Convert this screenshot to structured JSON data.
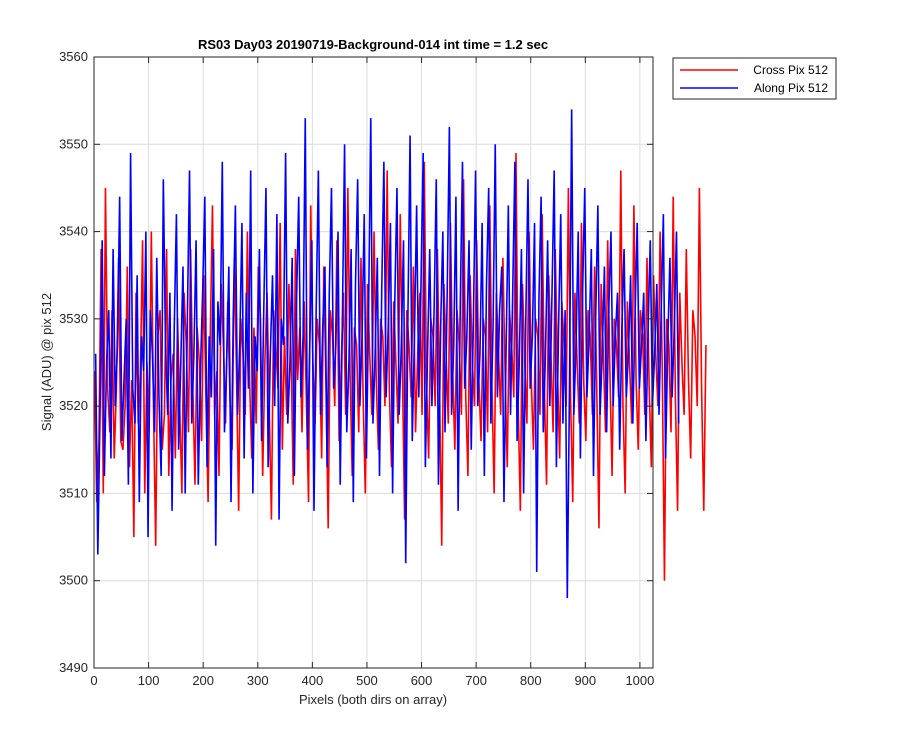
{
  "chart_data": {
    "type": "line",
    "title": "RS03 Day03 20190719-Background-014 int time = 1.2 sec",
    "xlabel": "Pixels (both dirs on array)",
    "ylabel": "Signal (ADU) @ pix 512",
    "xlim": [
      0,
      1024
    ],
    "ylim": [
      3490,
      3560
    ],
    "xticks": [
      0,
      100,
      200,
      300,
      400,
      500,
      600,
      700,
      800,
      900,
      1000
    ],
    "yticks": [
      3490,
      3500,
      3510,
      3520,
      3530,
      3540,
      3550,
      3560
    ],
    "grid": true,
    "legend_position": "outside top-right",
    "series": [
      {
        "name": "Cross Pix 512",
        "color": "#ff0000",
        "x_start": 1,
        "x_step": 4,
        "values": [
          3524,
          3509,
          3516,
          3538,
          3510,
          3545,
          3522,
          3517,
          3531,
          3514,
          3522,
          3537,
          3516,
          3515,
          3520,
          3536,
          3513,
          3523,
          3505,
          3533,
          3518,
          3524,
          3539,
          3510,
          3525,
          3517,
          3540,
          3520,
          3504,
          3528,
          3531,
          3515,
          3519,
          3538,
          3512,
          3523,
          3526,
          3514,
          3530,
          3520,
          3510,
          3533,
          3527,
          3517,
          3538,
          3522,
          3511,
          3529,
          3525,
          3516,
          3535,
          3521,
          3509,
          3528,
          3543,
          3519,
          3524,
          3512,
          3534,
          3527,
          3518,
          3532,
          3521,
          3515,
          3537,
          3524,
          3508,
          3530,
          3526,
          3519,
          3540,
          3523,
          3514,
          3529,
          3518,
          3536,
          3530,
          3512,
          3525,
          3533,
          3520,
          3507,
          3531,
          3527,
          3522,
          3541,
          3515,
          3528,
          3519,
          3534,
          3526,
          3511,
          3538,
          3523,
          3529,
          3517,
          3532,
          3521,
          3509,
          3543,
          3525,
          3518,
          3530,
          3527,
          3514,
          3536,
          3522,
          3506,
          3531,
          3528,
          3520,
          3539,
          3516,
          3525,
          3533,
          3519,
          3545,
          3524,
          3512,
          3529,
          3527,
          3517,
          3537,
          3521,
          3510,
          3534,
          3526,
          3519,
          3540,
          3523,
          3515,
          3530,
          3528,
          3520,
          3547,
          3522,
          3513,
          3532,
          3525,
          3518,
          3542,
          3524,
          3507,
          3531,
          3527,
          3521,
          3536,
          3517,
          3526,
          3533,
          3519,
          3548,
          3523,
          3514,
          3530,
          3528,
          3520,
          3538,
          3522,
          3504,
          3534,
          3526,
          3518,
          3541,
          3524,
          3515,
          3531,
          3527,
          3519,
          3546,
          3521,
          3512,
          3535,
          3525,
          3520,
          3539,
          3523,
          3516,
          3530,
          3528,
          3517,
          3543,
          3522,
          3510,
          3533,
          3526,
          3519,
          3537,
          3524,
          3513,
          3531,
          3527,
          3521,
          3549,
          3520,
          3508,
          3534,
          3525,
          3518,
          3540,
          3523,
          3515,
          3530,
          3528,
          3519,
          3542,
          3522,
          3511,
          3535,
          3526,
          3517,
          3538,
          3524,
          3514,
          3532,
          3527,
          3520,
          3545,
          3521,
          3509,
          3533,
          3525,
          3518,
          3541,
          3523,
          3516,
          3531,
          3528,
          3519,
          3536,
          3522,
          3506,
          3534,
          3526,
          3517,
          3539,
          3524,
          3512,
          3530,
          3527,
          3521,
          3547,
          3520,
          3510,
          3532,
          3525,
          3518,
          3543,
          3523,
          3515,
          3531,
          3528,
          3519,
          3537,
          3522,
          3513,
          3535,
          3526,
          3520,
          3540,
          3524,
          3500,
          3530,
          3527,
          3517,
          3544,
          3521,
          3508,
          3533,
          3525,
          3519,
          3538,
          3523,
          3514,
          3531,
          3528,
          3520,
          3545,
          3522,
          3508,
          3527
        ]
      },
      {
        "name": "Along Pix 512",
        "color": "#0000ff",
        "x_start": 3,
        "x_step": 4,
        "values": [
          3526,
          3503,
          3519,
          3539,
          3512,
          3525,
          3531,
          3514,
          3538,
          3520,
          3527,
          3544,
          3516,
          3523,
          3530,
          3511,
          3549,
          3522,
          3518,
          3535,
          3509,
          3528,
          3524,
          3540,
          3505,
          3531,
          3526,
          3517,
          3537,
          3521,
          3512,
          3546,
          3527,
          3519,
          3533,
          3508,
          3529,
          3542,
          3515,
          3525,
          3536,
          3510,
          3530,
          3547,
          3518,
          3526,
          3539,
          3511,
          3524,
          3533,
          3544,
          3513,
          3528,
          3521,
          3538,
          3504,
          3532,
          3527,
          3548,
          3517,
          3525,
          3536,
          3509,
          3530,
          3543,
          3519,
          3527,
          3541,
          3514,
          3533,
          3522,
          3547,
          3510,
          3528,
          3524,
          3538,
          3516,
          3531,
          3545,
          3513,
          3526,
          3535,
          3520,
          3542,
          3507,
          3530,
          3527,
          3549,
          3518,
          3525,
          3537,
          3512,
          3532,
          3544,
          3521,
          3528,
          3553,
          3515,
          3526,
          3539,
          3508,
          3531,
          3547,
          3519,
          3529,
          3536,
          3513,
          3533,
          3545,
          3522,
          3527,
          3540,
          3511,
          3530,
          3550,
          3517,
          3525,
          3538,
          3509,
          3534,
          3546,
          3520,
          3528,
          3542,
          3514,
          3531,
          3553,
          3518,
          3526,
          3537,
          3512,
          3533,
          3548,
          3521,
          3529,
          3541,
          3510,
          3532,
          3545,
          3519,
          3527,
          3539,
          3502,
          3530,
          3551,
          3516,
          3528,
          3543,
          3521,
          3534,
          3549,
          3513,
          3526,
          3538,
          3520,
          3531,
          3546,
          3511,
          3529,
          3540,
          3517,
          3533,
          3552,
          3519,
          3527,
          3544,
          3508,
          3532,
          3548,
          3522,
          3528,
          3539,
          3515,
          3530,
          3547,
          3520,
          3526,
          3541,
          3512,
          3534,
          3545,
          3518,
          3529,
          3550,
          3521,
          3531,
          3536,
          3509,
          3527,
          3543,
          3519,
          3533,
          3548,
          3516,
          3525,
          3538,
          3510,
          3530,
          3546,
          3522,
          3528,
          3541,
          3501,
          3532,
          3544,
          3517,
          3526,
          3539,
          3520,
          3533,
          3547,
          3513,
          3529,
          3542,
          3518,
          3531,
          3498,
          3522,
          3554,
          3519,
          3527,
          3540,
          3514,
          3533,
          3545,
          3521,
          3528,
          3538,
          3512,
          3530,
          3543,
          3519,
          3526,
          3536,
          3517,
          3531,
          3540,
          3520,
          3528,
          3533,
          3515,
          3529,
          3538,
          3521,
          3526,
          3535,
          3518,
          3530,
          3541,
          3522,
          3527,
          3533,
          3516,
          3529,
          3539,
          3520,
          3526,
          3534,
          3519,
          3531,
          3542,
          3514,
          3527,
          3537,
          3521,
          3529,
          3540,
          3518
        ]
      }
    ]
  }
}
